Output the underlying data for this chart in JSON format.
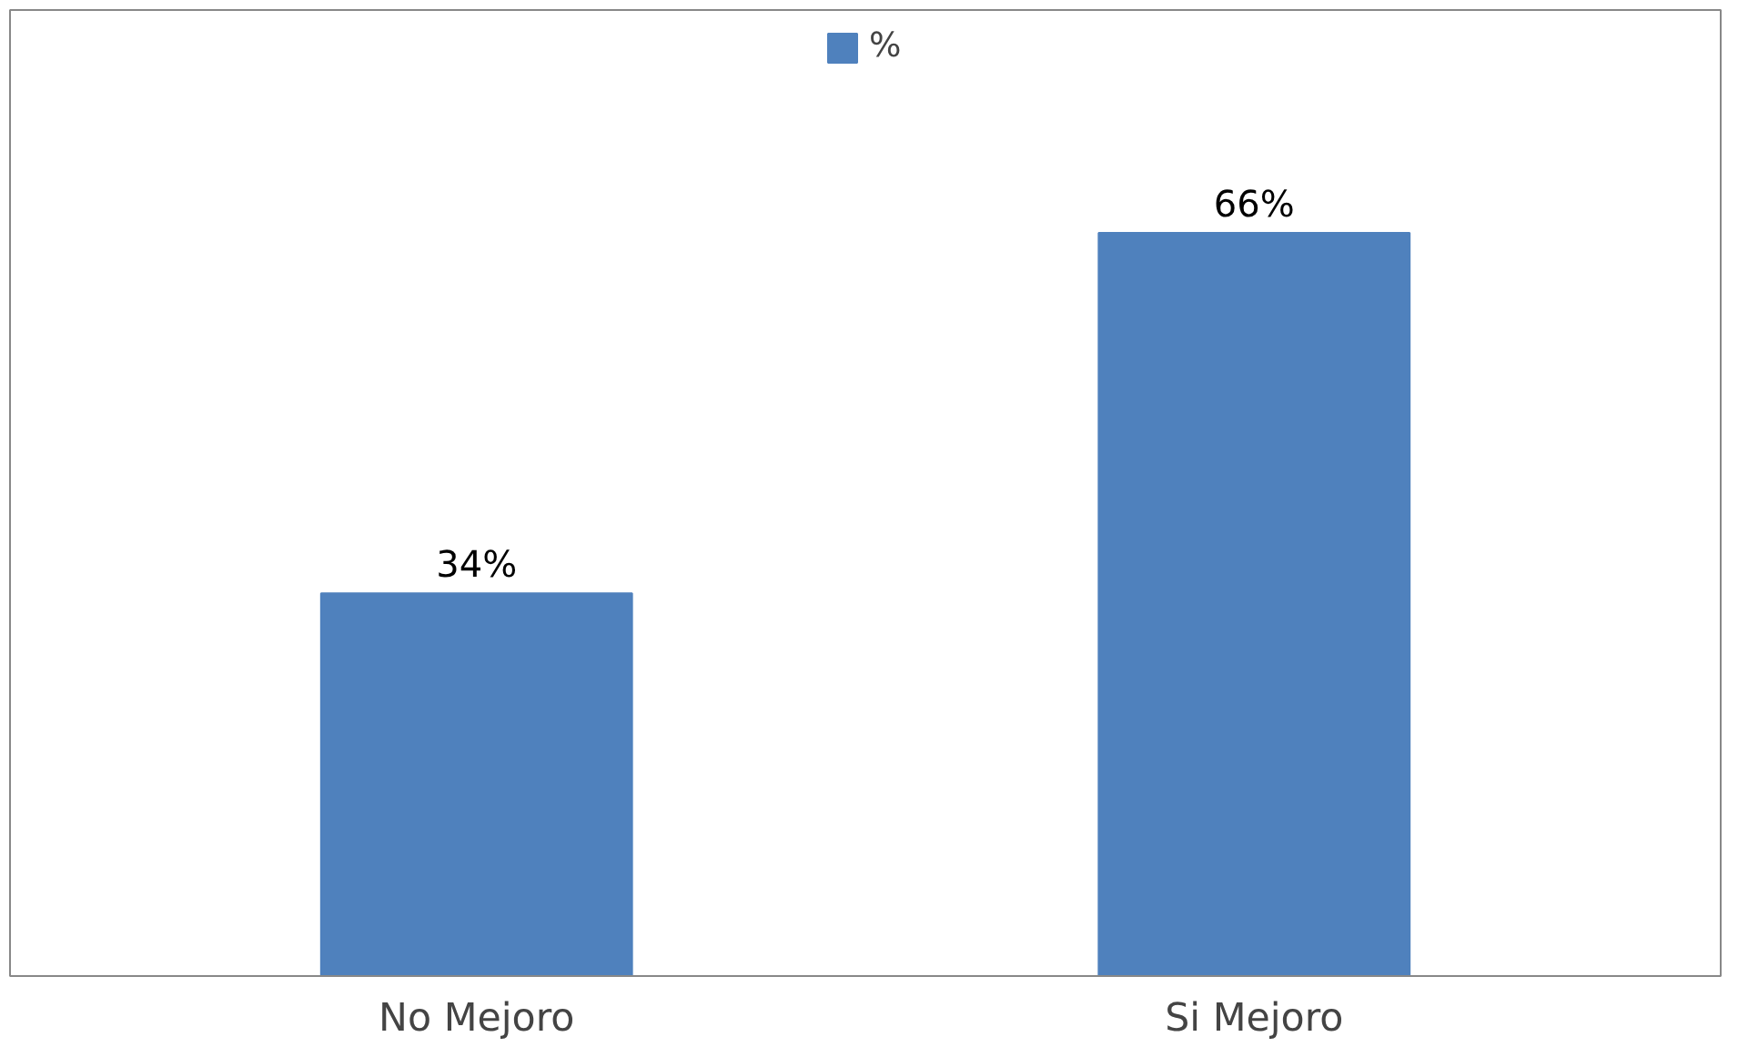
{
  "chart_data": {
    "type": "bar",
    "categories": [
      "No Mejoro",
      "Si Mejoro"
    ],
    "series": [
      {
        "name": "%",
        "color": "#4f81bd",
        "values": [
          34,
          66
        ],
        "value_labels": [
          "34%",
          "66%"
        ]
      }
    ],
    "legend": "top",
    "grid": false
  }
}
